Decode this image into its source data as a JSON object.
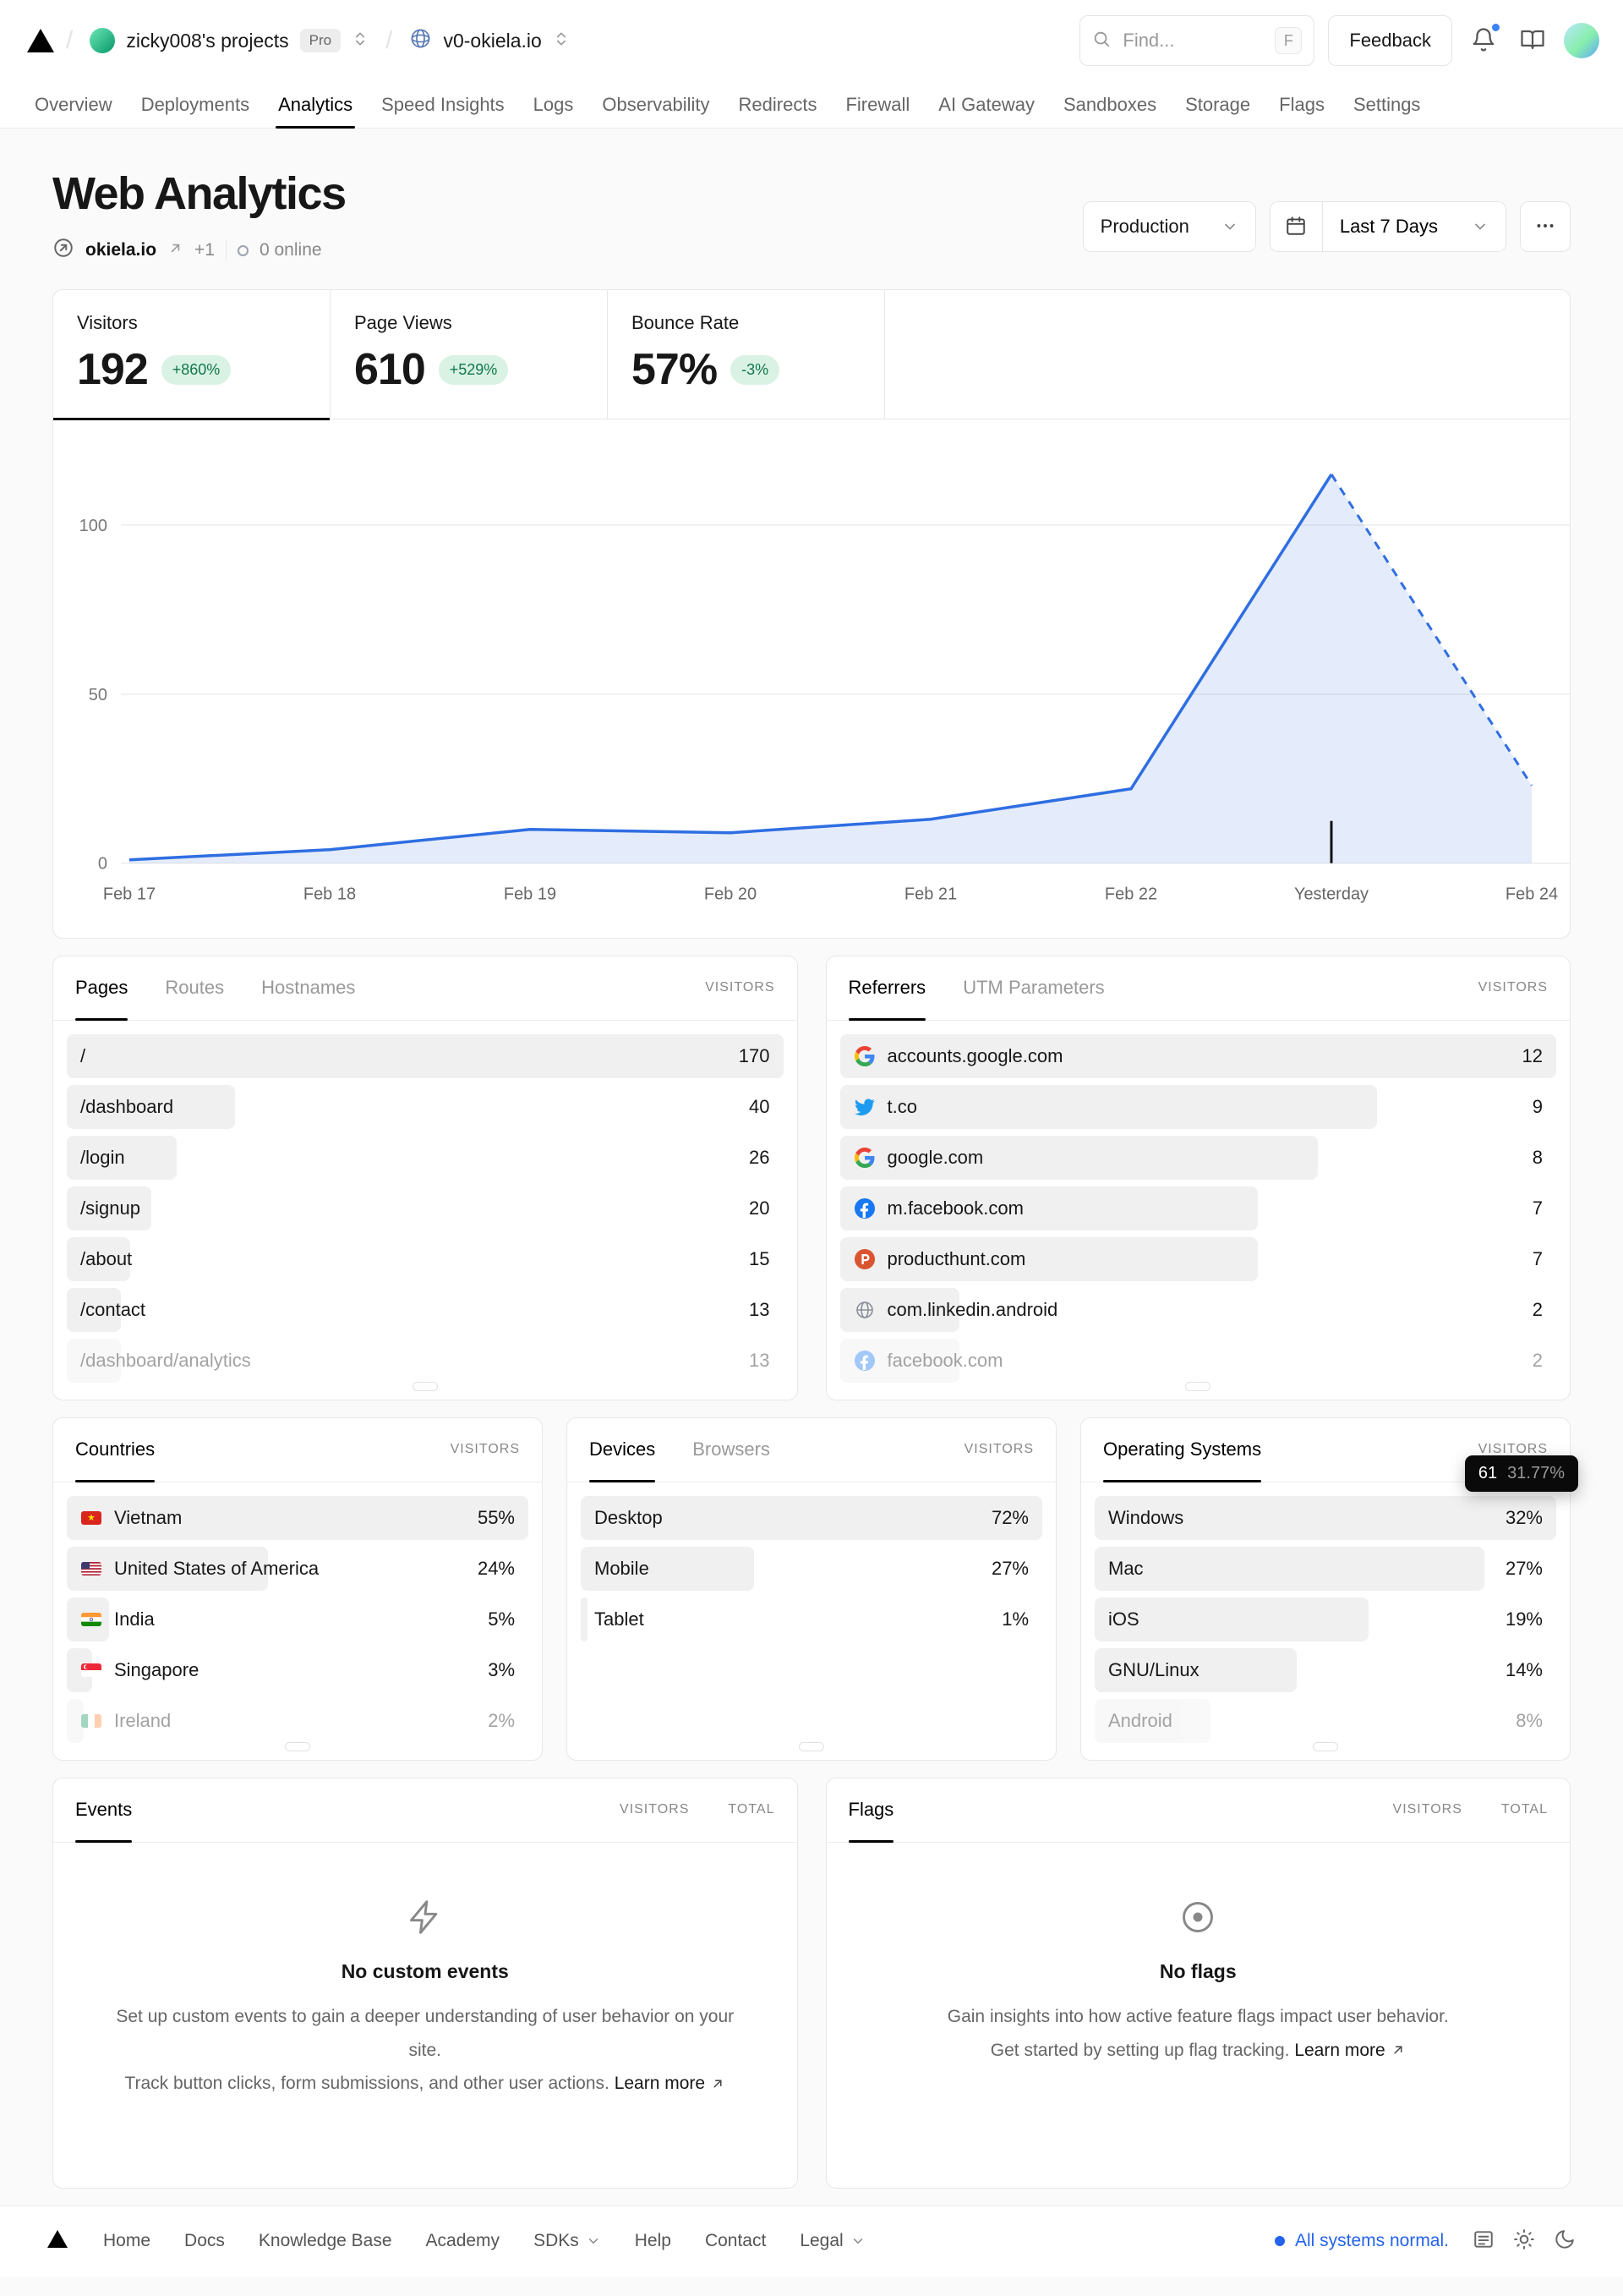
{
  "header": {
    "breadcrumb": {
      "team": "zicky008's projects",
      "plan": "Pro",
      "project": "v0-okiela.io"
    },
    "search": {
      "placeholder": "Find...",
      "shortcut": "F"
    },
    "feedback": "Feedback",
    "icons": [
      "vercel-logo",
      "search-icon",
      "bell-icon",
      "docs-icon",
      "avatar"
    ]
  },
  "nav": {
    "tabs": [
      {
        "label": "Overview"
      },
      {
        "label": "Deployments"
      },
      {
        "label": "Analytics",
        "active": true
      },
      {
        "label": "Speed Insights"
      },
      {
        "label": "Logs"
      },
      {
        "label": "Observability"
      },
      {
        "label": "Redirects"
      },
      {
        "label": "Firewall"
      },
      {
        "label": "AI Gateway"
      },
      {
        "label": "Sandboxes"
      },
      {
        "label": "Storage"
      },
      {
        "label": "Flags"
      },
      {
        "label": "Settings"
      }
    ]
  },
  "page": {
    "title": "Web Analytics",
    "domain": "okiela.io",
    "domain_extra": "+1",
    "online_status": "0 online",
    "environment": "Production",
    "date_range": "Last 7 Days"
  },
  "stats": [
    {
      "label": "Visitors",
      "value": "192",
      "delta": "+860%",
      "active": true
    },
    {
      "label": "Page Views",
      "value": "610",
      "delta": "+529%",
      "active": false
    },
    {
      "label": "Bounce Rate",
      "value": "57%",
      "delta": "-3%",
      "active": false
    }
  ],
  "chart_data": {
    "type": "area",
    "title": "Visitors over last 7 days",
    "x": [
      "Feb 17",
      "Feb 18",
      "Feb 19",
      "Feb 20",
      "Feb 21",
      "Feb 22",
      "Yesterday",
      "Feb 24"
    ],
    "values": [
      1,
      4,
      10,
      9,
      13,
      22,
      115,
      23
    ],
    "dashed_from_index": 6,
    "marker_index": 6,
    "yticks": [
      0,
      50,
      100
    ],
    "ylim": [
      0,
      125
    ],
    "grid": true,
    "legend": "none",
    "line_color": "#2f6ee2",
    "fill_color": "rgba(47,110,226,0.13)"
  },
  "panels": {
    "pages": {
      "tabs": [
        {
          "label": "Pages",
          "active": true
        },
        {
          "label": "Routes"
        },
        {
          "label": "Hostnames"
        }
      ],
      "value_header": "VISITORS",
      "rows": [
        {
          "label": "/",
          "value": "170",
          "bar": 100
        },
        {
          "label": "/dashboard",
          "value": "40",
          "bar": 23.5
        },
        {
          "label": "/login",
          "value": "26",
          "bar": 15.3
        },
        {
          "label": "/signup",
          "value": "20",
          "bar": 11.8
        },
        {
          "label": "/about",
          "value": "15",
          "bar": 8.8
        },
        {
          "label": "/contact",
          "value": "13",
          "bar": 7.6
        },
        {
          "label": "/dashboard/analytics",
          "value": "13",
          "bar": 7.6,
          "muted": true
        }
      ]
    },
    "referrers": {
      "tabs": [
        {
          "label": "Referrers",
          "active": true
        },
        {
          "label": "UTM Parameters"
        }
      ],
      "value_header": "VISITORS",
      "rows": [
        {
          "label": "accounts.google.com",
          "value": "12",
          "bar": 100,
          "icon": "google"
        },
        {
          "label": "t.co",
          "value": "9",
          "bar": 75,
          "icon": "twitter"
        },
        {
          "label": "google.com",
          "value": "8",
          "bar": 66.7,
          "icon": "google"
        },
        {
          "label": "m.facebook.com",
          "value": "7",
          "bar": 58.3,
          "icon": "facebook"
        },
        {
          "label": "producthunt.com",
          "value": "7",
          "bar": 58.3,
          "icon": "producthunt"
        },
        {
          "label": "com.linkedin.android",
          "value": "2",
          "bar": 16.7,
          "icon": "globe"
        },
        {
          "label": "facebook.com",
          "value": "2",
          "bar": 16.7,
          "icon": "facebook",
          "muted": true
        }
      ]
    },
    "countries": {
      "tabs": [
        {
          "label": "Countries",
          "active": true
        }
      ],
      "value_header": "VISITORS",
      "rows": [
        {
          "label": "Vietnam",
          "value": "55%",
          "bar": 100,
          "icon": "flag-vn"
        },
        {
          "label": "United States of America",
          "value": "24%",
          "bar": 43.6,
          "icon": "flag-us"
        },
        {
          "label": "India",
          "value": "5%",
          "bar": 9.1,
          "icon": "flag-in"
        },
        {
          "label": "Singapore",
          "value": "3%",
          "bar": 5.5,
          "icon": "flag-sg"
        },
        {
          "label": "Ireland",
          "value": "2%",
          "bar": 3.6,
          "icon": "flag-ie",
          "muted": true
        }
      ]
    },
    "devices": {
      "tabs": [
        {
          "label": "Devices",
          "active": true
        },
        {
          "label": "Browsers"
        }
      ],
      "value_header": "VISITORS",
      "rows": [
        {
          "label": "Desktop",
          "value": "72%",
          "bar": 100
        },
        {
          "label": "Mobile",
          "value": "27%",
          "bar": 37.5
        },
        {
          "label": "Tablet",
          "value": "1%",
          "bar": 1.4
        }
      ]
    },
    "os": {
      "tabs": [
        {
          "label": "Operating Systems",
          "active": true
        }
      ],
      "value_header": "VISITORS",
      "tooltip": {
        "value": "61",
        "percent": "31.77%"
      },
      "rows": [
        {
          "label": "Windows",
          "value": "32%",
          "bar": 100
        },
        {
          "label": "Mac",
          "value": "27%",
          "bar": 84.4
        },
        {
          "label": "iOS",
          "value": "19%",
          "bar": 59.4
        },
        {
          "label": "GNU/Linux",
          "value": "14%",
          "bar": 43.8
        },
        {
          "label": "Android",
          "value": "8%",
          "bar": 25,
          "muted": true
        }
      ]
    },
    "events": {
      "tab": "Events",
      "col1": "VISITORS",
      "col2": "TOTAL",
      "empty_title": "No custom events",
      "line1": "Set up custom events to gain a deeper understanding of user behavior on your site.",
      "line2": "Track button clicks, form submissions, and other user actions.",
      "link": "Learn more"
    },
    "flags": {
      "tab": "Flags",
      "col1": "VISITORS",
      "col2": "TOTAL",
      "empty_title": "No flags",
      "line1": "Gain insights into how active feature flags impact user behavior.",
      "line2": "Get started by setting up flag tracking.",
      "link": "Learn more"
    }
  },
  "footer": {
    "links": [
      {
        "label": "Home"
      },
      {
        "label": "Docs"
      },
      {
        "label": "Knowledge Base"
      },
      {
        "label": "Academy"
      },
      {
        "label": "SDKs",
        "chevron": true
      },
      {
        "label": "Help"
      },
      {
        "label": "Contact"
      },
      {
        "label": "Legal",
        "chevron": true
      }
    ],
    "status": "All systems normal.",
    "icons": [
      "changelog-icon",
      "light-theme-icon",
      "dark-theme-icon"
    ]
  }
}
